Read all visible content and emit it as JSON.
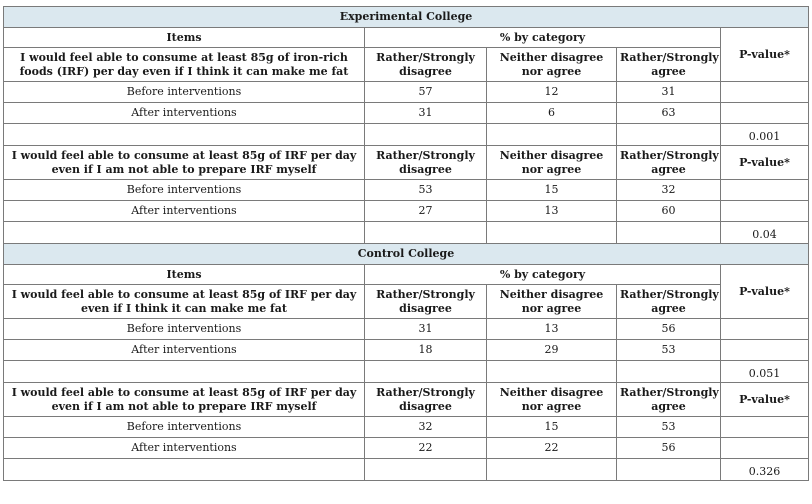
{
  "blocks": [
    {
      "college": "Experimental College",
      "items_header": "Items",
      "category_header": "% by category",
      "questions": [
        {
          "text": "I would feel able to consume at least 85g of iron-rich foods (IRF) per day even if I think it can make me fat",
          "col1": "Rather/Strongly disagree",
          "col2": "Neither disagree nor agree",
          "col3": "Rather/Strongly agree",
          "pvalue_label": "P-value*",
          "rows": [
            {
              "label": "Before interventions",
              "v1": "57",
              "v2": "12",
              "v3": "31"
            },
            {
              "label": "After interventions",
              "v1": "31",
              "v2": "6",
              "v3": "63"
            }
          ],
          "pvalue": "0.001"
        },
        {
          "text": "I would feel able to consume at least 85g of IRF per day even if I am not able to prepare IRF myself",
          "col1": "Rather/Strongly disagree",
          "col2": "Neither disagree nor agree",
          "col3": "Rather/Strongly agree",
          "pvalue_label": "P-value*",
          "rows": [
            {
              "label": "Before interventions",
              "v1": "53",
              "v2": "15",
              "v3": "32"
            },
            {
              "label": "After interventions",
              "v1": "27",
              "v2": "13",
              "v3": "60"
            }
          ],
          "pvalue": "0.04"
        }
      ]
    },
    {
      "college": "Control College",
      "items_header": "Items",
      "category_header": "% by category",
      "questions": [
        {
          "text": "I would feel able to consume at least 85g of IRF per day even if I think it can make me fat",
          "col1": "Rather/Strongly disagree",
          "col2": "Neither disagree nor agree",
          "col3": "Rather/Strongly agree",
          "pvalue_label": "P-value*",
          "rows": [
            {
              "label": "Before interventions",
              "v1": "31",
              "v2": "13",
              "v3": "56"
            },
            {
              "label": "After interventions",
              "v1": "18",
              "v2": "29",
              "v3": "53"
            }
          ],
          "pvalue": "0.051"
        },
        {
          "text": "I would feel able to consume at least 85g of IRF per day even if I am not able to prepare IRF myself",
          "col1": "Rather/Strongly disagree",
          "col2": "Neither disagree nor agree",
          "col3": "Rather/Strongly agree",
          "pvalue_label": "P-value*",
          "rows": [
            {
              "label": "Before interventions",
              "v1": "32",
              "v2": "15",
              "v3": "53"
            },
            {
              "label": "After interventions",
              "v1": "22",
              "v2": "22",
              "v3": "56"
            }
          ],
          "pvalue": "0.326"
        }
      ]
    }
  ],
  "colors": {
    "section_bg": "#dbe8ef",
    "border": "#7a7a7a",
    "text": "#1a1a1a"
  }
}
